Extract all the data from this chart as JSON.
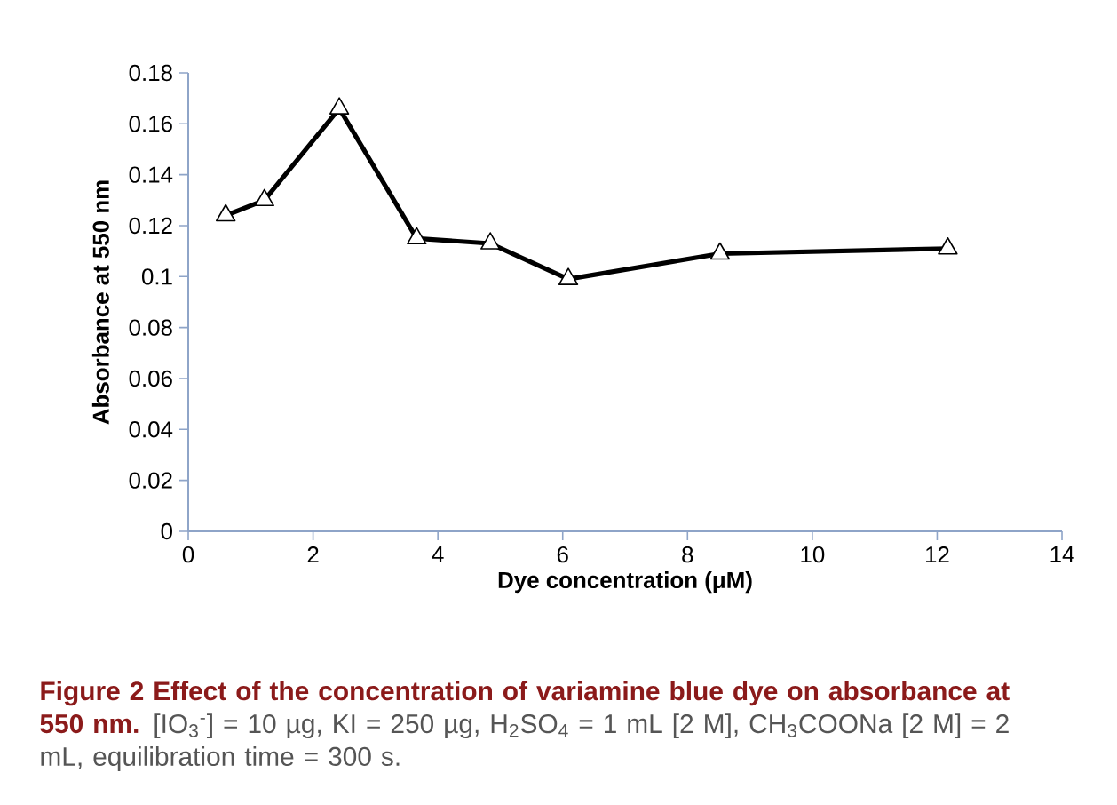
{
  "chart_data": {
    "type": "line",
    "xlabel": "Dye concentration (μM)",
    "ylabel": "Absorbance at 550 nm",
    "x": [
      0.6,
      1.22,
      2.42,
      3.66,
      4.84,
      6.09,
      8.52,
      12.17
    ],
    "series": [
      {
        "color": "#000000",
        "values": [
          0.124,
          0.13,
          0.166,
          0.115,
          0.113,
          0.099,
          0.109,
          0.111
        ]
      }
    ],
    "xlim": [
      0,
      14
    ],
    "xticks": [
      0,
      2,
      4,
      6,
      8,
      10,
      12,
      14
    ],
    "ylim": [
      0,
      0.18
    ],
    "yticks": [
      0,
      0.02,
      0.04,
      0.06,
      0.08,
      0.1,
      0.12,
      0.14,
      0.16,
      0.18
    ],
    "marker": "triangle",
    "line_style": "solid",
    "annotations": [
      "Figure 2 Effect of the concentration of variamine blue dye on absorbance at 550 nm.",
      "[IO$_{3}$$^{-}$] = 10 µg, KI = 250 µg, H$_{2}$SO$_{4}$ = 1 mL [2 M], CH$_{3}$COONa [2 M] = 2 mL, equilibration time = 300 s."
    ]
  }
}
